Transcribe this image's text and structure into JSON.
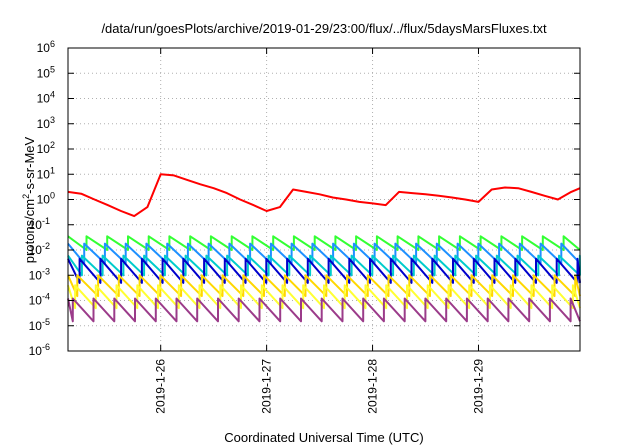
{
  "chart_data": {
    "type": "line",
    "title": "/data/run/goesPlots/archive/2019-01-29/23:00/flux/../flux/5daysMarsFluxes.txt",
    "xlabel": "Coordinated Universal Time (UTC)",
    "ylabel_prefix": "protons/cm",
    "ylabel_sup": "2",
    "ylabel_suffix": "-s-sr-MeV",
    "yscale": "log",
    "ylim": [
      1e-06,
      1000000.0
    ],
    "xlim_days": [
      "2019-01-25T03:00",
      "2019-01-29T23:00"
    ],
    "grid": true,
    "legend": "none",
    "y_ticks": [
      {
        "base": "10",
        "exp": "6"
      },
      {
        "base": "10",
        "exp": "5"
      },
      {
        "base": "10",
        "exp": "4"
      },
      {
        "base": "10",
        "exp": "3"
      },
      {
        "base": "10",
        "exp": "2"
      },
      {
        "base": "10",
        "exp": "1"
      },
      {
        "base": "10",
        "exp": "0"
      },
      {
        "base": "10",
        "exp": "-1"
      },
      {
        "base": "10",
        "exp": "-2"
      },
      {
        "base": "10",
        "exp": "-3"
      },
      {
        "base": "10",
        "exp": "-4"
      },
      {
        "base": "10",
        "exp": "-5"
      },
      {
        "base": "10",
        "exp": "-6"
      }
    ],
    "x_ticks": [
      "2019-1-26",
      "2019-1-27",
      "2019-1-28",
      "2019-1-29"
    ],
    "series": [
      {
        "color": "#ff0000",
        "x": [
          "2019-01-25T03:00",
          "2019-01-25T06:00",
          "2019-01-25T09:00",
          "2019-01-25T12:00",
          "2019-01-25T15:00",
          "2019-01-25T18:00",
          "2019-01-25T21:00",
          "2019-01-26T00:00",
          "2019-01-26T03:00",
          "2019-01-26T06:00",
          "2019-01-26T09:00",
          "2019-01-26T12:00",
          "2019-01-26T15:00",
          "2019-01-26T18:00",
          "2019-01-26T21:00",
          "2019-01-27T00:00",
          "2019-01-27T03:00",
          "2019-01-27T06:00",
          "2019-01-27T09:00",
          "2019-01-27T12:00",
          "2019-01-27T15:00",
          "2019-01-27T18:00",
          "2019-01-27T21:00",
          "2019-01-28T00:00",
          "2019-01-28T03:00",
          "2019-01-28T06:00",
          "2019-01-28T09:00",
          "2019-01-28T12:00",
          "2019-01-28T15:00",
          "2019-01-28T18:00",
          "2019-01-28T21:00",
          "2019-01-29T00:00",
          "2019-01-29T03:00",
          "2019-01-29T06:00",
          "2019-01-29T09:00",
          "2019-01-29T12:00",
          "2019-01-29T15:00",
          "2019-01-29T18:00",
          "2019-01-29T21:00",
          "2019-01-29T23:00"
        ],
        "y": [
          2.0,
          1.7,
          1.0,
          0.6,
          0.35,
          0.22,
          0.5,
          10.0,
          9.0,
          6.0,
          4.0,
          2.8,
          1.8,
          1.0,
          0.6,
          0.35,
          0.5,
          2.5,
          2.0,
          1.6,
          1.2,
          1.0,
          0.8,
          0.7,
          0.6,
          2.0,
          1.8,
          1.6,
          1.4,
          1.2,
          1.0,
          0.8,
          2.5,
          3.0,
          2.8,
          2.0,
          1.4,
          1.0,
          2.0,
          2.8
        ]
      },
      {
        "color": "#33ff33",
        "x": [
          "2019-01-25T03:00",
          "2019-01-29T23:00"
        ],
        "y": [
          0.03,
          0.03
        ],
        "pattern": {
          "period_hours": 4.7,
          "peak": 0.035,
          "trough": 0.01
        }
      },
      {
        "color": "#1e90ff",
        "x": [
          "2019-01-25T03:00",
          "2019-01-29T23:00"
        ],
        "y": [
          0.015,
          0.015
        ],
        "pattern": {
          "period_hours": 4.7,
          "peak": 0.018,
          "trough": 0.003
        }
      },
      {
        "color": "#00cccc",
        "x": [
          "2019-01-25T03:00",
          "2019-01-29T23:00"
        ],
        "y": [
          0.005,
          0.005
        ],
        "pattern": {
          "period_hours": 4.7,
          "peak": 0.006,
          "trough": 0.001
        }
      },
      {
        "color": "#0000cc",
        "x": [
          "2019-01-25T03:00",
          "2019-01-29T23:00"
        ],
        "y": [
          0.003,
          0.003
        ],
        "pattern": {
          "period_hours": 4.7,
          "peak": 0.0045,
          "trough": 0.0005
        }
      },
      {
        "color": "#ffd700",
        "x": [
          "2019-01-25T03:00",
          "2019-01-29T23:00"
        ],
        "y": [
          0.0008,
          0.0008
        ],
        "pattern": {
          "period_hours": 4.7,
          "peak": 0.001,
          "trough": 0.00015
        }
      },
      {
        "color": "#ffff33",
        "x": [
          "2019-01-25T03:00",
          "2019-01-29T23:00"
        ],
        "y": [
          0.0003,
          0.0003
        ],
        "pattern": {
          "period_hours": 4.7,
          "peak": 0.0004,
          "trough": 5e-05
        }
      },
      {
        "color": "#9b3b8a",
        "x": [
          "2019-01-25T03:00",
          "2019-01-29T23:00"
        ],
        "y": [
          0.0001,
          0.0001
        ],
        "pattern": {
          "period_hours": 4.7,
          "peak": 0.00012,
          "trough": 1.5e-05
        }
      }
    ]
  }
}
